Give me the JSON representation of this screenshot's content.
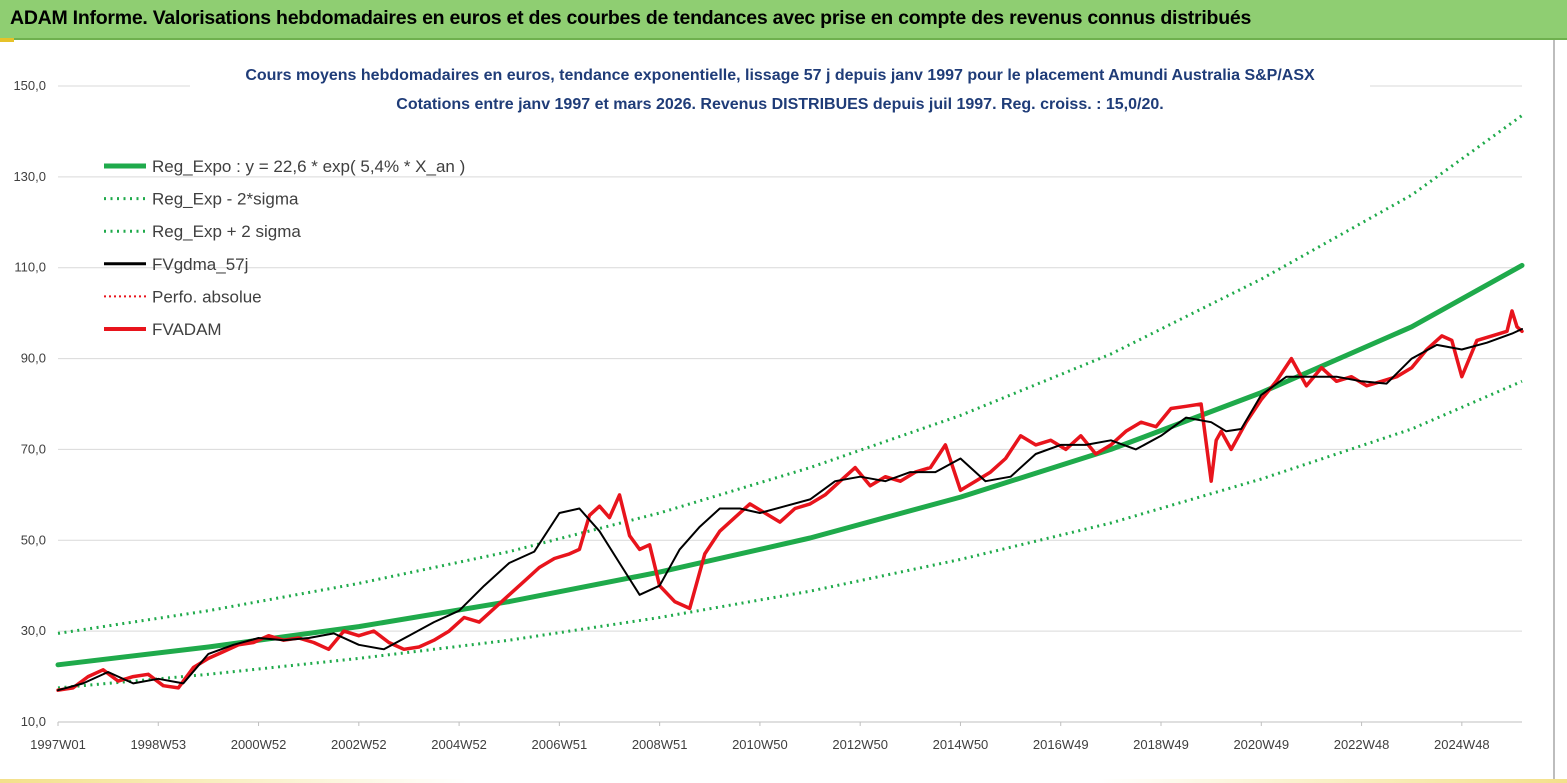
{
  "banner": {
    "title": "ADAM Informe. Valorisations hebdomadaires en euros et des courbes de tendances avec prise en compte des revenus connus distribués"
  },
  "colors": {
    "banner_bg": "#8fce72",
    "trend": "#1faa4b",
    "fvadam": "#e8141c",
    "fvgdma": "#000000",
    "title": "#1f3c78"
  },
  "chart_data": {
    "type": "line",
    "title": "Cours moyens hebdomadaires en euros, tendance exponentielle, lissage 57 j depuis janv 1997  pour le placement Amundi Australia S&P/ASX",
    "subtitle": "Cotations entre janv 1997 et mars 2026. Revenus  DISTRIBUES depuis juil 1997. Reg. croiss. : 15,0/20.",
    "xlabel": "",
    "ylabel": "",
    "ylim": [
      10,
      150
    ],
    "y_ticks": [
      "150,0",
      "130,0",
      "110,0",
      "90,0",
      "70,0",
      "50,0",
      "30,0",
      "10,0"
    ],
    "x_range_years": [
      1997.0,
      2026.2
    ],
    "x_tick_labels": [
      "1997W01",
      "1998W53",
      "2000W52",
      "2002W52",
      "2004W52",
      "2006W51",
      "2008W51",
      "2010W50",
      "2012W50",
      "2014W50",
      "2016W49",
      "2018W49",
      "2020W49",
      "2022W48",
      "2024W48"
    ],
    "x_tick_years": [
      1997.0,
      1999.0,
      2001.0,
      2003.0,
      2005.0,
      2007.0,
      2009.0,
      2011.0,
      2013.0,
      2015.0,
      2017.0,
      2019.0,
      2021.0,
      2023.0,
      2025.0
    ],
    "grid": "horizontal",
    "legend_position": "top-left",
    "legend": [
      {
        "label": "Reg_Expo : y = 22,6 * exp( 5,4% *  X_an )",
        "color": "#1faa4b",
        "style": "thick"
      },
      {
        "label": "Reg_Exp - 2*sigma",
        "color": "#1faa4b",
        "style": "dotted"
      },
      {
        "label": "Reg_Exp + 2 sigma",
        "color": "#1faa4b",
        "style": "dotted"
      },
      {
        "label": "FVgdma_57j",
        "color": "#000000",
        "style": "solid"
      },
      {
        "label": "Perfo. absolue",
        "color": "#e8141c",
        "style": "dotted"
      },
      {
        "label": "FVADAM",
        "color": "#e8141c",
        "style": "thick"
      }
    ],
    "series": [
      {
        "name": "Reg_Expo : y = 22,6 * exp( 5,4% *  X_an )",
        "x": [
          1997,
          2000,
          2003,
          2006,
          2009,
          2012,
          2015,
          2018,
          2021,
          2024,
          2026.2
        ],
        "y": [
          22.6,
          26.5,
          31.0,
          36.5,
          43.0,
          50.5,
          59.5,
          70.0,
          82.5,
          97.0,
          110.5
        ]
      },
      {
        "name": "Reg_Exp - 2*sigma",
        "x": [
          1997,
          2000,
          2003,
          2006,
          2009,
          2012,
          2015,
          2018,
          2021,
          2024,
          2026.2
        ],
        "y": [
          17.5,
          20.5,
          24.0,
          28.0,
          33.0,
          38.8,
          45.8,
          53.8,
          63.5,
          74.5,
          85.0
        ]
      },
      {
        "name": "Reg_Exp + 2 sigma",
        "x": [
          1997,
          2000,
          2003,
          2006,
          2009,
          2012,
          2015,
          2018,
          2021,
          2024,
          2026.2
        ],
        "y": [
          29.5,
          34.5,
          40.5,
          47.5,
          56.0,
          66.0,
          77.5,
          91.0,
          107.5,
          126.0,
          143.5
        ]
      },
      {
        "name": "FVgdma_57j",
        "x": [
          1997.0,
          1997.5,
          1998.0,
          1998.5,
          1999.0,
          1999.5,
          2000.0,
          2000.5,
          2001.0,
          2001.5,
          2002.0,
          2002.5,
          2003.0,
          2003.5,
          2004.0,
          2004.5,
          2005.0,
          2005.5,
          2006.0,
          2006.5,
          2007.0,
          2007.4,
          2007.8,
          2008.2,
          2008.6,
          2009.0,
          2009.4,
          2009.8,
          2010.2,
          2010.6,
          2011.0,
          2011.5,
          2012.0,
          2012.5,
          2013.0,
          2013.5,
          2014.0,
          2014.5,
          2015.0,
          2015.5,
          2016.0,
          2016.5,
          2017.0,
          2017.5,
          2018.0,
          2018.5,
          2019.0,
          2019.5,
          2020.0,
          2020.3,
          2020.6,
          2021.0,
          2021.5,
          2022.0,
          2022.5,
          2023.0,
          2023.5,
          2024.0,
          2024.5,
          2025.0,
          2025.5,
          2026.0,
          2026.2
        ],
        "y": [
          17.0,
          18.5,
          21.0,
          18.5,
          19.5,
          18.5,
          25.0,
          27.0,
          28.5,
          28.0,
          28.5,
          29.5,
          27.0,
          26.0,
          29.0,
          32.0,
          34.5,
          40.0,
          45.0,
          47.5,
          56.0,
          57.0,
          52.0,
          45.0,
          38.0,
          40.0,
          48.0,
          53.0,
          57.0,
          57.0,
          56.0,
          57.5,
          59.0,
          63.0,
          64.0,
          63.0,
          65.0,
          65.0,
          68.0,
          63.0,
          64.0,
          69.0,
          71.0,
          71.0,
          72.0,
          70.0,
          73.0,
          77.0,
          76.0,
          74.0,
          74.5,
          82.0,
          86.0,
          86.0,
          86.0,
          85.0,
          84.5,
          90.0,
          93.0,
          92.0,
          93.5,
          95.5,
          96.5
        ]
      },
      {
        "name": "FVADAM",
        "x": [
          1997.0,
          1997.3,
          1997.6,
          1997.9,
          1998.2,
          1998.5,
          1998.8,
          1999.1,
          1999.4,
          1999.7,
          2000.0,
          2000.3,
          2000.6,
          2000.9,
          2001.2,
          2001.5,
          2001.8,
          2002.1,
          2002.4,
          2002.7,
          2003.0,
          2003.3,
          2003.6,
          2003.9,
          2004.2,
          2004.5,
          2004.8,
          2005.1,
          2005.4,
          2005.7,
          2006.0,
          2006.3,
          2006.6,
          2006.9,
          2007.2,
          2007.4,
          2007.6,
          2007.8,
          2008.0,
          2008.2,
          2008.4,
          2008.6,
          2008.8,
          2009.0,
          2009.3,
          2009.6,
          2009.9,
          2010.2,
          2010.5,
          2010.8,
          2011.1,
          2011.4,
          2011.7,
          2012.0,
          2012.3,
          2012.6,
          2012.9,
          2013.2,
          2013.5,
          2013.8,
          2014.1,
          2014.4,
          2014.7,
          2015.0,
          2015.3,
          2015.6,
          2015.9,
          2016.2,
          2016.5,
          2016.8,
          2017.1,
          2017.4,
          2017.7,
          2018.0,
          2018.3,
          2018.6,
          2018.9,
          2019.2,
          2019.5,
          2019.8,
          2020.0,
          2020.1,
          2020.2,
          2020.4,
          2020.7,
          2021.0,
          2021.3,
          2021.6,
          2021.9,
          2022.2,
          2022.5,
          2022.8,
          2023.1,
          2023.4,
          2023.7,
          2024.0,
          2024.3,
          2024.6,
          2024.8,
          2025.0,
          2025.3,
          2025.6,
          2025.9,
          2026.0,
          2026.1,
          2026.2
        ],
        "y": [
          17.0,
          17.5,
          20.0,
          21.5,
          19.0,
          20.0,
          20.5,
          18.0,
          17.5,
          22.0,
          24.0,
          25.5,
          27.0,
          27.5,
          29.0,
          28.0,
          28.5,
          27.5,
          26.0,
          30.0,
          29.0,
          30.0,
          27.5,
          26.0,
          26.5,
          28.0,
          30.0,
          33.0,
          32.0,
          35.0,
          38.0,
          41.0,
          44.0,
          46.0,
          47.0,
          48.0,
          55.5,
          57.5,
          55.0,
          60.0,
          51.0,
          48.0,
          49.0,
          40.0,
          36.5,
          35.0,
          47.0,
          52.0,
          55.0,
          58.0,
          56.0,
          54.0,
          57.0,
          58.0,
          60.0,
          63.0,
          66.0,
          62.0,
          64.0,
          63.0,
          65.0,
          66.0,
          71.0,
          61.0,
          63.0,
          65.0,
          68.0,
          73.0,
          71.0,
          72.0,
          70.0,
          73.0,
          69.0,
          71.0,
          74.0,
          76.0,
          75.0,
          79.0,
          79.5,
          80.0,
          63.0,
          72.0,
          74.0,
          70.0,
          76.0,
          81.0,
          85.0,
          90.0,
          84.0,
          88.0,
          85.0,
          86.0,
          84.0,
          85.0,
          86.0,
          88.0,
          92.0,
          95.0,
          94.0,
          86.0,
          94.0,
          95.0,
          96.0,
          100.5,
          97.0,
          96.0
        ]
      }
    ]
  }
}
